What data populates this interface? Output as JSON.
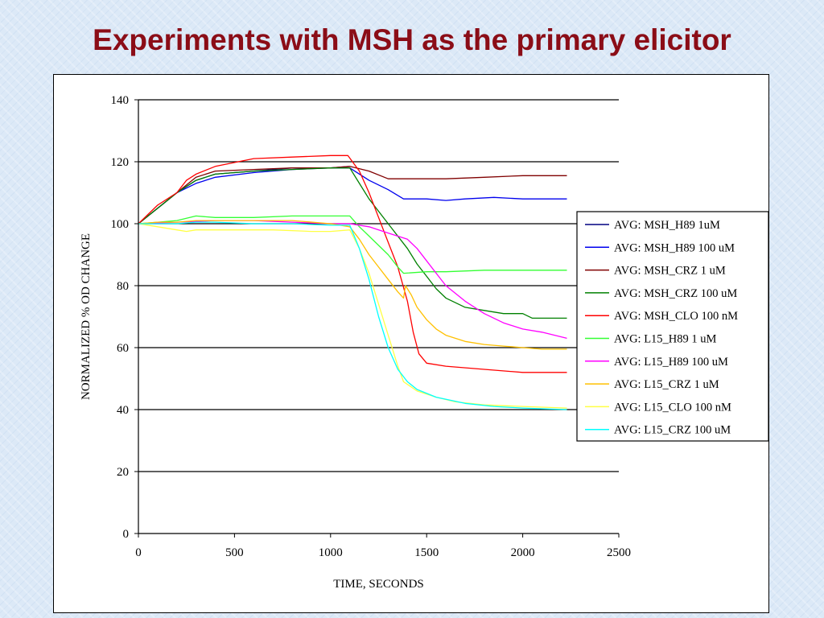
{
  "slide": {
    "title": "Experiments with MSH as the primary elicitor"
  },
  "chart_data": {
    "type": "line",
    "title": "",
    "xlabel": "TIME, SECONDS",
    "ylabel": "NORMALIZED % OD CHANGE",
    "xlim": [
      0,
      2500
    ],
    "ylim": [
      0,
      140
    ],
    "xticks": [
      "0",
      "500",
      "1000",
      "1500",
      "2000",
      "2500"
    ],
    "yticks": [
      "0",
      "20",
      "40",
      "60",
      "80",
      "100",
      "120",
      "140"
    ],
    "grid": "horizontal",
    "legend_position": "right",
    "series": [
      {
        "name": "AVG: MSH_H89 1uM",
        "color": "#000080",
        "points": [
          [
            0,
            100
          ],
          [
            100,
            105
          ],
          [
            200,
            110
          ],
          [
            300,
            114
          ],
          [
            400,
            116
          ],
          [
            600,
            117
          ],
          [
            800,
            118
          ],
          [
            1000,
            118
          ],
          [
            1100,
            118.5
          ]
        ]
      },
      {
        "name": "AVG: MSH_H89 100 uM",
        "color": "#0000ee",
        "points": [
          [
            0,
            100
          ],
          [
            100,
            105
          ],
          [
            200,
            110
          ],
          [
            300,
            113
          ],
          [
            400,
            115
          ],
          [
            600,
            116.5
          ],
          [
            800,
            117.5
          ],
          [
            1000,
            118
          ],
          [
            1100,
            118
          ],
          [
            1200,
            114
          ],
          [
            1300,
            111
          ],
          [
            1380,
            108
          ],
          [
            1390,
            108
          ],
          [
            1500,
            108
          ],
          [
            1600,
            107.5
          ],
          [
            1700,
            108
          ],
          [
            1850,
            108.5
          ],
          [
            2000,
            108
          ],
          [
            2230,
            108
          ]
        ]
      },
      {
        "name": "AVG: MSH_CRZ 1 uM",
        "color": "#800000",
        "points": [
          [
            0,
            100
          ],
          [
            100,
            105
          ],
          [
            200,
            110
          ],
          [
            300,
            115
          ],
          [
            400,
            117
          ],
          [
            600,
            117.5
          ],
          [
            800,
            118
          ],
          [
            1000,
            118
          ],
          [
            1100,
            118.5
          ],
          [
            1200,
            117
          ],
          [
            1300,
            114.5
          ],
          [
            1400,
            114.5
          ],
          [
            1600,
            114.5
          ],
          [
            1800,
            115
          ],
          [
            2000,
            115.5
          ],
          [
            2230,
            115.5
          ]
        ]
      },
      {
        "name": "AVG: MSH_CRZ 100 uM",
        "color": "#008000",
        "points": [
          [
            0,
            100
          ],
          [
            100,
            105
          ],
          [
            200,
            110
          ],
          [
            300,
            114
          ],
          [
            400,
            116
          ],
          [
            600,
            117
          ],
          [
            800,
            117.5
          ],
          [
            1000,
            118
          ],
          [
            1100,
            118
          ],
          [
            1150,
            113
          ],
          [
            1200,
            108
          ],
          [
            1300,
            100
          ],
          [
            1400,
            92
          ],
          [
            1450,
            87
          ],
          [
            1500,
            83
          ],
          [
            1550,
            79
          ],
          [
            1600,
            76
          ],
          [
            1700,
            73
          ],
          [
            1800,
            72
          ],
          [
            1900,
            71
          ],
          [
            2000,
            71
          ],
          [
            2050,
            69.5
          ],
          [
            2230,
            69.5
          ]
        ]
      },
      {
        "name": "AVG: MSH_CLO 100 nM",
        "color": "#ff0000",
        "points": [
          [
            0,
            100
          ],
          [
            100,
            106
          ],
          [
            200,
            110
          ],
          [
            250,
            114
          ],
          [
            300,
            116
          ],
          [
            400,
            118.5
          ],
          [
            600,
            121
          ],
          [
            800,
            121.5
          ],
          [
            1000,
            122
          ],
          [
            1090,
            122
          ],
          [
            1150,
            117
          ],
          [
            1200,
            110
          ],
          [
            1250,
            102
          ],
          [
            1300,
            94
          ],
          [
            1350,
            86
          ],
          [
            1400,
            75
          ],
          [
            1430,
            65
          ],
          [
            1460,
            58
          ],
          [
            1500,
            55
          ],
          [
            1600,
            54
          ],
          [
            1800,
            53
          ],
          [
            2000,
            52
          ],
          [
            2230,
            52
          ]
        ]
      },
      {
        "name": "AVG: L15_H89 1 uM",
        "color": "#33ff33",
        "points": [
          [
            0,
            100
          ],
          [
            100,
            100.5
          ],
          [
            200,
            101
          ],
          [
            300,
            102.5
          ],
          [
            400,
            102
          ],
          [
            600,
            102
          ],
          [
            800,
            102.5
          ],
          [
            1000,
            102.5
          ],
          [
            1100,
            102.5
          ],
          [
            1150,
            99
          ],
          [
            1200,
            96
          ],
          [
            1300,
            90
          ],
          [
            1350,
            86
          ],
          [
            1380,
            84
          ],
          [
            1500,
            84.5
          ],
          [
            1600,
            84.5
          ],
          [
            1800,
            85
          ],
          [
            2000,
            85
          ],
          [
            2230,
            85
          ]
        ]
      },
      {
        "name": "AVG: L15_H89 100 uM",
        "color": "#ff00ff",
        "points": [
          [
            0,
            100
          ],
          [
            200,
            100.5
          ],
          [
            400,
            101
          ],
          [
            600,
            101
          ],
          [
            800,
            100.5
          ],
          [
            1000,
            100
          ],
          [
            1100,
            100
          ],
          [
            1200,
            99
          ],
          [
            1300,
            97
          ],
          [
            1400,
            95
          ],
          [
            1450,
            92
          ],
          [
            1500,
            88
          ],
          [
            1550,
            84
          ],
          [
            1600,
            80
          ],
          [
            1700,
            75
          ],
          [
            1800,
            71
          ],
          [
            1900,
            68
          ],
          [
            2000,
            66
          ],
          [
            2100,
            65
          ],
          [
            2230,
            63
          ]
        ]
      },
      {
        "name": "AVG: L15_CRZ 1 uM",
        "color": "#ffc000",
        "points": [
          [
            0,
            100
          ],
          [
            100,
            100.5
          ],
          [
            200,
            100.5
          ],
          [
            300,
            101
          ],
          [
            400,
            101
          ],
          [
            600,
            101
          ],
          [
            800,
            101
          ],
          [
            1000,
            100
          ],
          [
            1100,
            99
          ],
          [
            1150,
            95
          ],
          [
            1200,
            90
          ],
          [
            1250,
            86
          ],
          [
            1300,
            82
          ],
          [
            1350,
            78
          ],
          [
            1380,
            76
          ],
          [
            1390,
            80
          ],
          [
            1420,
            77
          ],
          [
            1450,
            73
          ],
          [
            1500,
            69
          ],
          [
            1550,
            66
          ],
          [
            1600,
            64
          ],
          [
            1700,
            62
          ],
          [
            1800,
            61
          ],
          [
            1900,
            60.5
          ],
          [
            2000,
            60
          ],
          [
            2100,
            59.5
          ],
          [
            2230,
            59.5
          ]
        ]
      },
      {
        "name": "AVG: L15_CLO 100 nM",
        "color": "#ffff44",
        "points": [
          [
            0,
            100
          ],
          [
            100,
            99
          ],
          [
            200,
            98
          ],
          [
            250,
            97.5
          ],
          [
            300,
            98
          ],
          [
            500,
            98
          ],
          [
            700,
            98
          ],
          [
            900,
            97.5
          ],
          [
            1000,
            97.5
          ],
          [
            1100,
            98
          ],
          [
            1150,
            92
          ],
          [
            1200,
            84
          ],
          [
            1250,
            74
          ],
          [
            1300,
            64
          ],
          [
            1350,
            54
          ],
          [
            1380,
            49
          ],
          [
            1450,
            46
          ],
          [
            1550,
            44
          ],
          [
            1650,
            42.5
          ],
          [
            1800,
            41.5
          ],
          [
            2000,
            41
          ],
          [
            2230,
            40.5
          ]
        ]
      },
      {
        "name": "AVG: L15_CRZ 100 uM",
        "color": "#00ffff",
        "points": [
          [
            0,
            100
          ],
          [
            100,
            100
          ],
          [
            200,
            100
          ],
          [
            300,
            100.5
          ],
          [
            400,
            100.5
          ],
          [
            600,
            100
          ],
          [
            800,
            100
          ],
          [
            1000,
            99.5
          ],
          [
            1100,
            99.5
          ],
          [
            1150,
            92
          ],
          [
            1200,
            82
          ],
          [
            1250,
            70
          ],
          [
            1300,
            60
          ],
          [
            1350,
            53
          ],
          [
            1400,
            49
          ],
          [
            1450,
            46.5
          ],
          [
            1550,
            44
          ],
          [
            1700,
            42
          ],
          [
            1850,
            41
          ],
          [
            2000,
            40.5
          ],
          [
            2230,
            40
          ]
        ]
      }
    ]
  }
}
